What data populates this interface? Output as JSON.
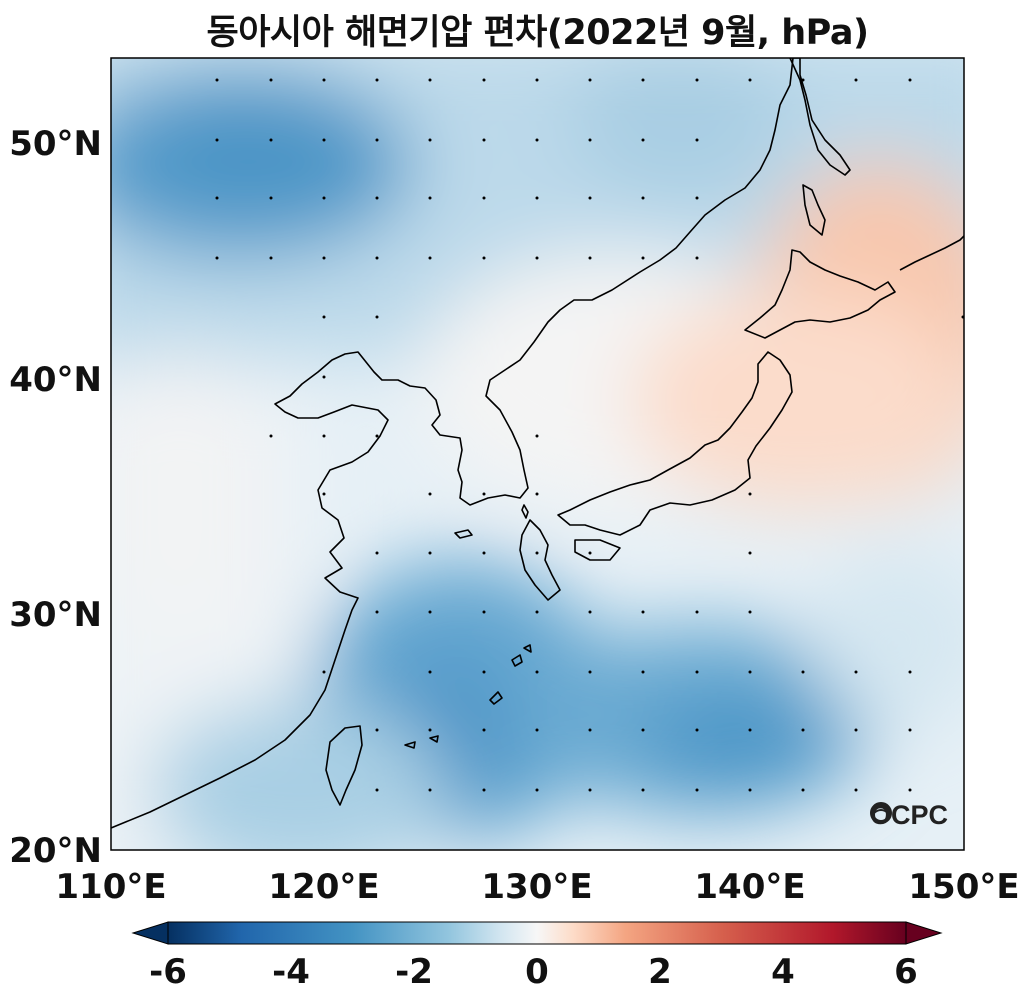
{
  "title": "동아시아 해면기압 편차(2022년 9월, hPa)",
  "logo_text": "OCPC",
  "map": {
    "lon_range": [
      110,
      150
    ],
    "lat_range": [
      20,
      53.5
    ],
    "x_ticks": [
      "110°E",
      "120°E",
      "130°E",
      "140°E",
      "150°E"
    ],
    "y_ticks": [
      "20°N",
      "30°N",
      "40°N",
      "50°N"
    ]
  },
  "colorbar": {
    "range": [
      -6,
      6
    ],
    "ticks": [
      "-6",
      "-4",
      "-2",
      "0",
      "2",
      "4",
      "6"
    ],
    "extend": "both",
    "colormap": "RdBu_r"
  },
  "colors": {
    "neg_max": "#053061",
    "neg_mid": "#4393c3",
    "neg_light": "#d1e5f0",
    "zero": "#f7f7f7",
    "pos_light": "#fddbc7",
    "pos_mid": "#d6604d",
    "pos_max": "#67001f"
  }
}
